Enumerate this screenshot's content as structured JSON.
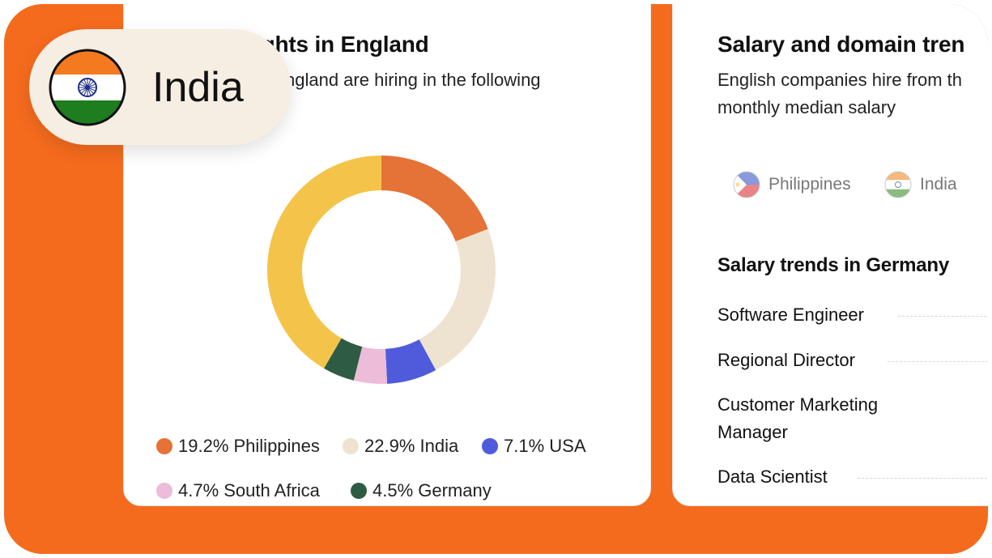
{
  "left_card": {
    "title": "ights in England",
    "subtitle": "ngland are hiring in the following"
  },
  "country_pill": {
    "label": "India",
    "flag_icon": "india-flag-icon"
  },
  "chart_data": {
    "type": "pie",
    "title": "",
    "values": [
      19.2,
      22.9,
      7.1,
      4.7,
      4.5,
      41.6
    ],
    "categories": [
      "Philippines",
      "India",
      "USA",
      "South Africa",
      "Germany",
      ""
    ],
    "colors": [
      "#E57236",
      "#EDE3D0",
      "#4F5BDB",
      "#EDBCD9",
      "#2E5B43",
      "#F4C44A"
    ],
    "donut": true
  },
  "legend": [
    {
      "label": "19.2% Philippines",
      "color": "#E57236"
    },
    {
      "label": "22.9% India",
      "color": "#EDE3D0"
    },
    {
      "label": "7.1% USA",
      "color": "#4F5BDB"
    },
    {
      "label": "4.7% South Africa",
      "color": "#EDBCD9"
    },
    {
      "label": "4.5% Germany",
      "color": "#2E5B43"
    }
  ],
  "right_card": {
    "title": "Salary and domain tren",
    "subtitle_line1": "English companies hire from th",
    "subtitle_line2": "monthly median salary",
    "tabs": [
      {
        "label": "Philippines",
        "icon": "philippines-flag-icon"
      },
      {
        "label": "India",
        "icon": "india-flag-icon"
      }
    ],
    "section_title": "Salary trends in Germany",
    "jobs": [
      {
        "label": "Software Engineer"
      },
      {
        "label": "Regional Director"
      },
      {
        "label": "Customer Marketing\nManager"
      },
      {
        "label": "Data Scientist"
      }
    ]
  },
  "colors": {
    "brand_orange": "#F56B1E",
    "pill_bg": "#F6EEE2"
  }
}
